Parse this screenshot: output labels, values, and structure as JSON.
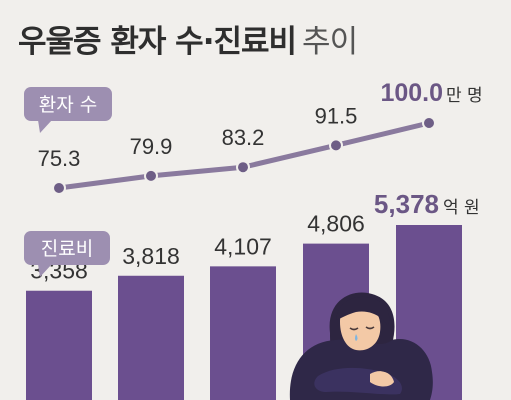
{
  "title": {
    "main": "우울증 환자 수·진료비",
    "sub": "추이"
  },
  "chart_data": [
    {
      "type": "line",
      "series_label": "환자 수",
      "unit": "만 명",
      "values": [
        75.3,
        79.9,
        83.2,
        91.5,
        100.0
      ],
      "value_labels": [
        "75.3",
        "79.9",
        "83.2",
        "91.5",
        "100.0"
      ],
      "color": "#8a7a9e"
    },
    {
      "type": "bar",
      "series_label": "진료비",
      "unit": "억 원",
      "values": [
        3358,
        3818,
        4107,
        4806,
        5378
      ],
      "value_labels": [
        "3,358",
        "3,818",
        "4,107",
        "4,806",
        "5,378"
      ],
      "color": "#6b4f8f"
    }
  ],
  "colors": {
    "background": "#f1efec",
    "bar": "#6b4f8f",
    "line": "#8a7a9e",
    "tag": "#9d8fb1",
    "text": "#333333",
    "highlight_text": "#6b5785"
  },
  "illustration": {
    "icon": "sad-person-illustration"
  }
}
